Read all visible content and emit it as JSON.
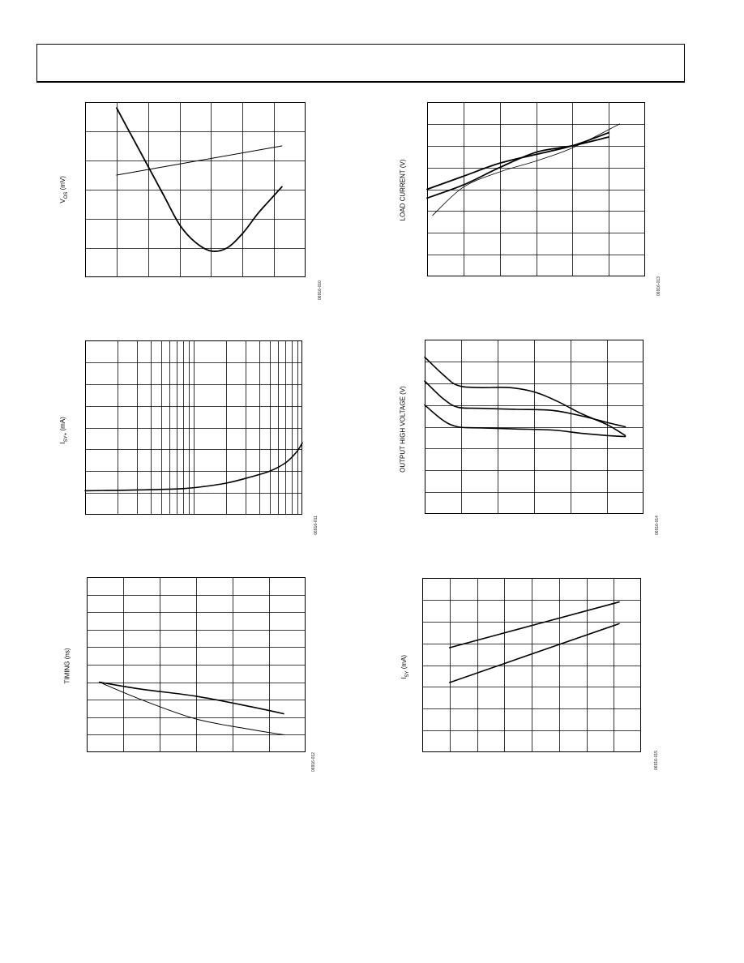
{
  "header": {
    "title": ""
  },
  "chart_data": [
    {
      "id": "c1",
      "type": "line",
      "ylabel_main": "V",
      "ylabel_sub": "OS",
      "ylabel_unit": " (mV)",
      "fig_id": "06916-010",
      "grid": true,
      "xlim": [
        0,
        7
      ],
      "ylim": [
        0,
        6
      ],
      "xcols": 7,
      "yrows": 6,
      "series": [
        {
          "values_x": [
            1,
            1.5,
            2,
            2.5,
            3,
            3.5,
            4,
            4.5,
            5,
            5.5,
            6,
            6.25
          ],
          "values_y": [
            5.8,
            4.8,
            3.8,
            2.8,
            1.8,
            1.2,
            0.9,
            1.0,
            1.5,
            2.2,
            2.8,
            3.1
          ],
          "width": 1.8
        },
        {
          "values_x": [
            1,
            6.25
          ],
          "values_y": [
            3.5,
            4.5
          ],
          "width": 1
        }
      ]
    },
    {
      "id": "c2",
      "type": "line",
      "ylabel_main": "LOAD CURRENT (V)",
      "ylabel_sub": "",
      "ylabel_unit": "",
      "fig_id": "06916-013",
      "grid": true,
      "xlim": [
        0,
        6
      ],
      "ylim": [
        0,
        8
      ],
      "xcols": 6,
      "yrows": 8,
      "series": [
        {
          "values_x": [
            0,
            1,
            2,
            3,
            4,
            5
          ],
          "values_y": [
            4.0,
            4.6,
            5.2,
            5.6,
            6.0,
            6.6
          ],
          "width": 1.8
        },
        {
          "values_x": [
            0,
            1,
            2,
            3,
            4,
            5
          ],
          "values_y": [
            3.6,
            4.2,
            5.0,
            5.7,
            6.0,
            6.4
          ],
          "width": 1.8
        },
        {
          "values_x": [
            0.15,
            1,
            2,
            3,
            4,
            5.3
          ],
          "values_y": [
            2.8,
            4.1,
            4.8,
            5.3,
            5.9,
            7.0
          ],
          "width": 0.8
        }
      ]
    },
    {
      "id": "c3",
      "type": "line",
      "ylabel_main": "I",
      "ylabel_sub": "SY+",
      "ylabel_unit": " (mA)",
      "fig_id": "06916-011",
      "grid": true,
      "log_x": true,
      "xlim": [
        0,
        2
      ],
      "ylim": [
        0,
        8
      ],
      "yrows": 8,
      "series": [
        {
          "values_x": [
            0,
            0.3,
            0.6,
            0.9,
            1.1,
            1.3,
            1.5,
            1.7,
            1.85,
            1.95,
            2.0
          ],
          "values_y": [
            1.1,
            1.12,
            1.15,
            1.2,
            1.3,
            1.45,
            1.7,
            2.0,
            2.4,
            2.9,
            3.3
          ],
          "width": 1.6
        }
      ]
    },
    {
      "id": "c4",
      "type": "line",
      "ylabel_main": "OUTPUT HIGH VOLTAGE (V)",
      "ylabel_sub": "",
      "ylabel_unit": "",
      "fig_id": "06916-014",
      "grid": true,
      "xlim": [
        0,
        6
      ],
      "ylim": [
        0,
        8
      ],
      "xcols": 6,
      "yrows": 8,
      "series": [
        {
          "values_x": [
            0,
            0.5,
            0.9,
            1.5,
            2.3,
            3.0,
            3.6,
            4.3,
            5.0,
            5.5
          ],
          "values_y": [
            7.2,
            6.4,
            5.9,
            5.8,
            5.8,
            5.6,
            5.2,
            4.6,
            4.1,
            3.6
          ],
          "width": 1.6
        },
        {
          "values_x": [
            0,
            0.5,
            0.9,
            1.5,
            2.5,
            3.5,
            4.3,
            5.0,
            5.5
          ],
          "values_y": [
            6.1,
            5.3,
            4.9,
            4.85,
            4.8,
            4.75,
            4.5,
            4.2,
            4.0
          ],
          "width": 1.6
        },
        {
          "values_x": [
            0,
            0.5,
            0.9,
            1.5,
            2.5,
            3.5,
            4.3,
            5.0,
            5.5
          ],
          "values_y": [
            5.0,
            4.3,
            4.0,
            3.95,
            3.9,
            3.85,
            3.7,
            3.6,
            3.55
          ],
          "width": 1.6
        }
      ]
    },
    {
      "id": "c5",
      "type": "line",
      "ylabel_main": "TIMING (ns)",
      "ylabel_sub": "",
      "ylabel_unit": "",
      "fig_id": "06916-012",
      "grid": true,
      "xlim": [
        0,
        6
      ],
      "ylim": [
        0,
        10
      ],
      "xcols": 6,
      "yrows": 10,
      "series": [
        {
          "values_x": [
            0.35,
            1.5,
            3,
            4.5,
            5.4
          ],
          "values_y": [
            4,
            3.6,
            3.2,
            2.6,
            2.2
          ],
          "width": 1.6
        },
        {
          "values_x": [
            0.35,
            1.5,
            3,
            4.5,
            5.4
          ],
          "values_y": [
            4,
            3.0,
            1.9,
            1.3,
            1.0
          ],
          "width": 1.0
        }
      ]
    },
    {
      "id": "c6",
      "type": "line",
      "ylabel_main": "I",
      "ylabel_sub": "SY",
      "ylabel_unit": " (mA)",
      "fig_id": "06916-015",
      "grid": true,
      "xlim": [
        0,
        8
      ],
      "ylim": [
        0,
        8
      ],
      "xcols": 8,
      "yrows": 8,
      "series": [
        {
          "values_x": [
            1,
            7.2
          ],
          "values_y": [
            4.8,
            6.9
          ],
          "width": 1.6
        },
        {
          "values_x": [
            1,
            7.2
          ],
          "values_y": [
            3.2,
            5.9
          ],
          "width": 1.6
        }
      ]
    }
  ]
}
